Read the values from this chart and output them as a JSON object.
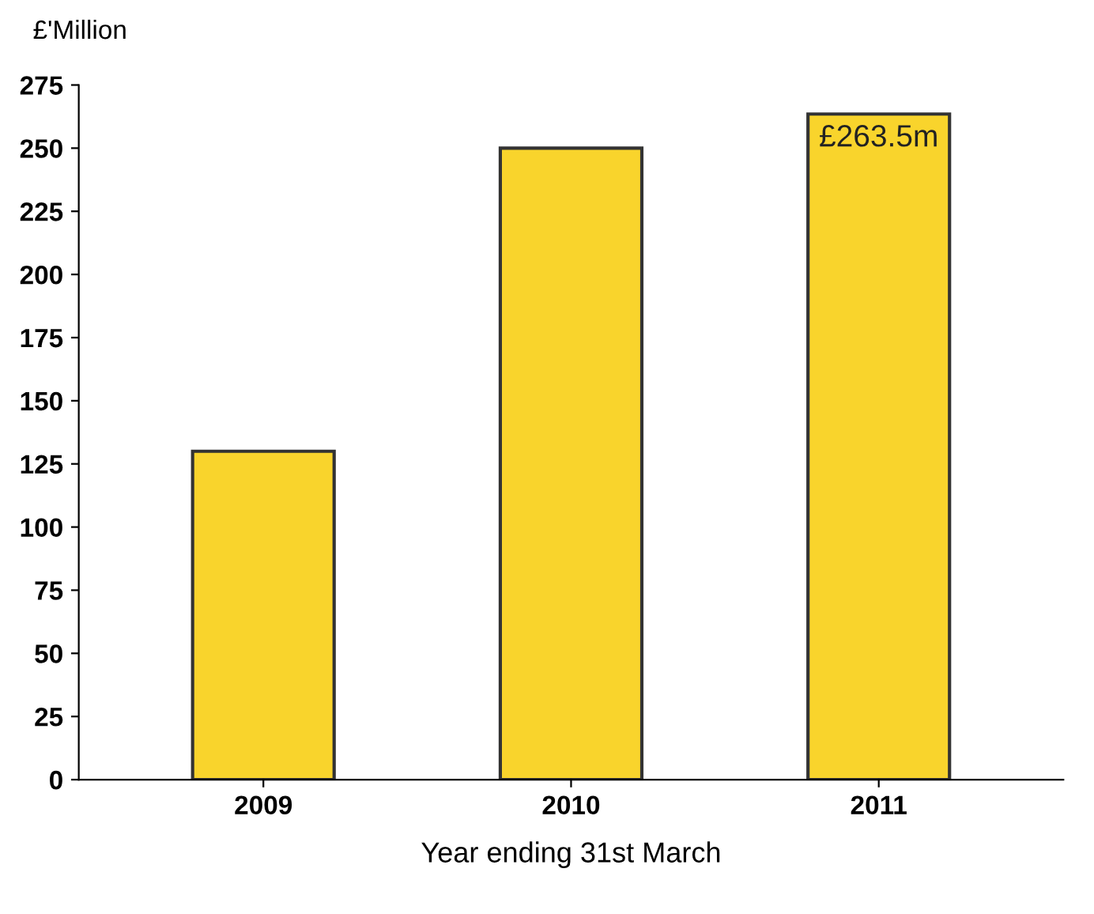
{
  "chart_data": {
    "type": "bar",
    "ylabel": "£'Million",
    "xlabel": "Year ending 31st March",
    "categories": [
      "2009",
      "2010",
      "2011"
    ],
    "values": [
      130,
      250,
      263.5
    ],
    "value_labels": [
      null,
      null,
      "£263.5m"
    ],
    "color": "#f9d42c",
    "ylim": [
      0,
      275
    ],
    "yticks": [
      0,
      25,
      50,
      75,
      100,
      125,
      150,
      175,
      200,
      225,
      250,
      275
    ],
    "grid": false
  }
}
